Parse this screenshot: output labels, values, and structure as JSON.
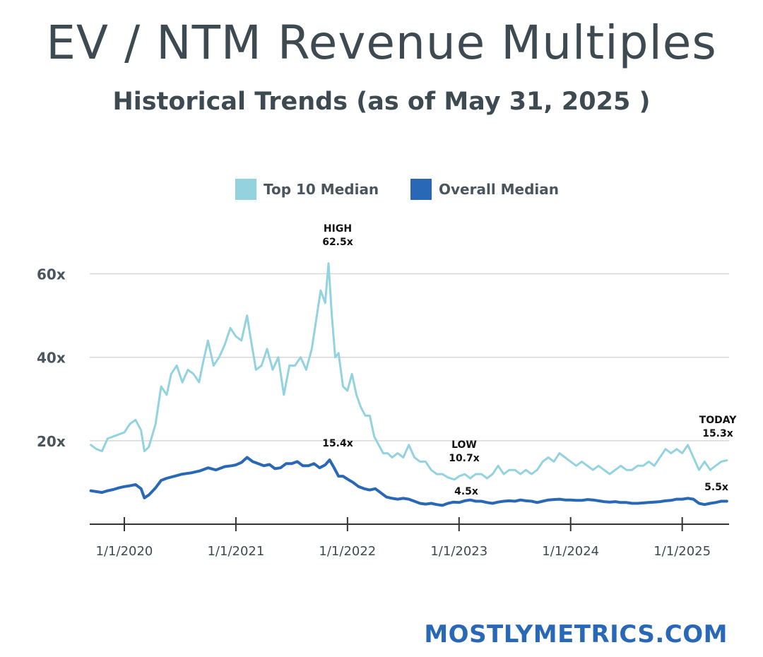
{
  "header": {
    "title": "EV / NTM Revenue Multiples",
    "subtitle": "Historical Trends (as of May 31, 2025 )"
  },
  "footer": {
    "brand": "MOSTLYMETRICS.COM"
  },
  "colors": {
    "top10": "#93d3df",
    "overall": "#2868b6",
    "text": "#3d4a52",
    "grid": "#d8d8d8",
    "brand": "#2868b6"
  },
  "chart_data": {
    "type": "line",
    "title": "",
    "xlabel": "",
    "ylabel": "",
    "ylim": [
      0,
      65
    ],
    "grid": "horizontal",
    "legend_position": "top",
    "y_ticks": [
      {
        "value": 20,
        "label": "20x"
      },
      {
        "value": 40,
        "label": "40x"
      },
      {
        "value": 60,
        "label": "60x"
      }
    ],
    "x_ticks": [
      {
        "value": 2020.0,
        "label": "1/1/2020"
      },
      {
        "value": 2021.0,
        "label": "1/1/2021"
      },
      {
        "value": 2022.0,
        "label": "1/1/2022"
      },
      {
        "value": 2023.0,
        "label": "1/1/2023"
      },
      {
        "value": 2024.0,
        "label": "1/1/2024"
      },
      {
        "value": 2025.0,
        "label": "1/1/2025"
      }
    ],
    "x_range": [
      2019.69,
      2025.42
    ],
    "series": [
      {
        "name": "Top 10 Median",
        "color": "#93d3df",
        "points": [
          [
            2019.7,
            19
          ],
          [
            2019.75,
            18
          ],
          [
            2019.8,
            17.5
          ],
          [
            2019.85,
            20.5
          ],
          [
            2019.9,
            21
          ],
          [
            2019.95,
            21.5
          ],
          [
            2020.0,
            22
          ],
          [
            2020.05,
            24
          ],
          [
            2020.1,
            25
          ],
          [
            2020.15,
            22.5
          ],
          [
            2020.18,
            17.5
          ],
          [
            2020.22,
            18.5
          ],
          [
            2020.28,
            24
          ],
          [
            2020.33,
            33
          ],
          [
            2020.38,
            31
          ],
          [
            2020.42,
            36
          ],
          [
            2020.47,
            38
          ],
          [
            2020.52,
            34
          ],
          [
            2020.57,
            37
          ],
          [
            2020.62,
            36
          ],
          [
            2020.67,
            34
          ],
          [
            2020.7,
            38
          ],
          [
            2020.75,
            44
          ],
          [
            2020.8,
            38
          ],
          [
            2020.85,
            40
          ],
          [
            2020.9,
            43
          ],
          [
            2020.95,
            47
          ],
          [
            2021.0,
            45
          ],
          [
            2021.05,
            44
          ],
          [
            2021.1,
            50
          ],
          [
            2021.13,
            45
          ],
          [
            2021.18,
            37
          ],
          [
            2021.23,
            38
          ],
          [
            2021.28,
            42
          ],
          [
            2021.33,
            37
          ],
          [
            2021.38,
            40
          ],
          [
            2021.43,
            31
          ],
          [
            2021.48,
            38
          ],
          [
            2021.53,
            38
          ],
          [
            2021.58,
            40
          ],
          [
            2021.63,
            37
          ],
          [
            2021.68,
            42
          ],
          [
            2021.72,
            49
          ],
          [
            2021.76,
            56
          ],
          [
            2021.8,
            53
          ],
          [
            2021.83,
            62.5
          ],
          [
            2021.86,
            50
          ],
          [
            2021.89,
            40
          ],
          [
            2021.92,
            41
          ],
          [
            2021.96,
            33
          ],
          [
            2022.0,
            32
          ],
          [
            2022.04,
            36
          ],
          [
            2022.08,
            31
          ],
          [
            2022.12,
            28
          ],
          [
            2022.16,
            26
          ],
          [
            2022.2,
            26
          ],
          [
            2022.24,
            21
          ],
          [
            2022.28,
            19
          ],
          [
            2022.32,
            17
          ],
          [
            2022.36,
            17
          ],
          [
            2022.4,
            16
          ],
          [
            2022.45,
            17
          ],
          [
            2022.5,
            16
          ],
          [
            2022.55,
            19
          ],
          [
            2022.6,
            16
          ],
          [
            2022.65,
            15
          ],
          [
            2022.7,
            15
          ],
          [
            2022.75,
            13
          ],
          [
            2022.8,
            12
          ],
          [
            2022.85,
            12
          ],
          [
            2022.9,
            11.2
          ],
          [
            2022.96,
            10.7
          ],
          [
            2023.0,
            11.5
          ],
          [
            2023.05,
            12
          ],
          [
            2023.1,
            11
          ],
          [
            2023.15,
            12
          ],
          [
            2023.2,
            12
          ],
          [
            2023.25,
            11
          ],
          [
            2023.3,
            12
          ],
          [
            2023.35,
            14
          ],
          [
            2023.4,
            12
          ],
          [
            2023.45,
            13
          ],
          [
            2023.5,
            13
          ],
          [
            2023.55,
            12
          ],
          [
            2023.6,
            13
          ],
          [
            2023.65,
            12
          ],
          [
            2023.7,
            13
          ],
          [
            2023.75,
            15
          ],
          [
            2023.8,
            16
          ],
          [
            2023.85,
            15
          ],
          [
            2023.9,
            17
          ],
          [
            2023.95,
            16
          ],
          [
            2024.0,
            15
          ],
          [
            2024.05,
            14
          ],
          [
            2024.1,
            15
          ],
          [
            2024.15,
            14
          ],
          [
            2024.2,
            13
          ],
          [
            2024.25,
            14
          ],
          [
            2024.3,
            13
          ],
          [
            2024.35,
            12
          ],
          [
            2024.4,
            13
          ],
          [
            2024.45,
            14
          ],
          [
            2024.5,
            13
          ],
          [
            2024.55,
            13
          ],
          [
            2024.6,
            14
          ],
          [
            2024.65,
            14
          ],
          [
            2024.7,
            15
          ],
          [
            2024.75,
            14
          ],
          [
            2024.8,
            16
          ],
          [
            2024.85,
            18
          ],
          [
            2024.9,
            17
          ],
          [
            2024.95,
            18
          ],
          [
            2025.0,
            17
          ],
          [
            2025.05,
            19
          ],
          [
            2025.1,
            16
          ],
          [
            2025.15,
            13
          ],
          [
            2025.2,
            15
          ],
          [
            2025.25,
            13
          ],
          [
            2025.3,
            14
          ],
          [
            2025.35,
            15
          ],
          [
            2025.4,
            15.3
          ]
        ]
      },
      {
        "name": "Overall Median",
        "color": "#2868b6",
        "points": [
          [
            2019.7,
            8
          ],
          [
            2019.75,
            7.8
          ],
          [
            2019.8,
            7.6
          ],
          [
            2019.85,
            8
          ],
          [
            2019.9,
            8.3
          ],
          [
            2019.95,
            8.7
          ],
          [
            2020.0,
            9
          ],
          [
            2020.05,
            9.2
          ],
          [
            2020.1,
            9.5
          ],
          [
            2020.15,
            8.5
          ],
          [
            2020.18,
            6.3
          ],
          [
            2020.22,
            7
          ],
          [
            2020.28,
            8.7
          ],
          [
            2020.33,
            10.5
          ],
          [
            2020.38,
            11
          ],
          [
            2020.45,
            11.5
          ],
          [
            2020.52,
            12
          ],
          [
            2020.6,
            12.3
          ],
          [
            2020.68,
            12.8
          ],
          [
            2020.75,
            13.5
          ],
          [
            2020.82,
            13
          ],
          [
            2020.9,
            13.8
          ],
          [
            2020.96,
            14
          ],
          [
            2021.0,
            14.2
          ],
          [
            2021.05,
            14.8
          ],
          [
            2021.1,
            16
          ],
          [
            2021.15,
            15
          ],
          [
            2021.2,
            14.5
          ],
          [
            2021.25,
            14
          ],
          [
            2021.3,
            14.3
          ],
          [
            2021.35,
            13.3
          ],
          [
            2021.4,
            13.5
          ],
          [
            2021.45,
            14.5
          ],
          [
            2021.5,
            14.5
          ],
          [
            2021.55,
            15
          ],
          [
            2021.6,
            14
          ],
          [
            2021.65,
            14
          ],
          [
            2021.7,
            14.5
          ],
          [
            2021.75,
            13.5
          ],
          [
            2021.8,
            14.2
          ],
          [
            2021.84,
            15.4
          ],
          [
            2021.88,
            13.5
          ],
          [
            2021.92,
            11.5
          ],
          [
            2021.96,
            11.5
          ],
          [
            2022.0,
            10.8
          ],
          [
            2022.05,
            10
          ],
          [
            2022.1,
            9
          ],
          [
            2022.15,
            8.5
          ],
          [
            2022.2,
            8.2
          ],
          [
            2022.25,
            8.5
          ],
          [
            2022.3,
            7.5
          ],
          [
            2022.35,
            6.5
          ],
          [
            2022.4,
            6.2
          ],
          [
            2022.45,
            6
          ],
          [
            2022.5,
            6.2
          ],
          [
            2022.55,
            6
          ],
          [
            2022.6,
            5.5
          ],
          [
            2022.65,
            5
          ],
          [
            2022.7,
            4.8
          ],
          [
            2022.75,
            5
          ],
          [
            2022.8,
            4.7
          ],
          [
            2022.85,
            4.5
          ],
          [
            2022.9,
            5
          ],
          [
            2022.95,
            5.3
          ],
          [
            2023.0,
            5.2
          ],
          [
            2023.05,
            5.6
          ],
          [
            2023.1,
            5.8
          ],
          [
            2023.15,
            5.5
          ],
          [
            2023.2,
            5.5
          ],
          [
            2023.25,
            5.2
          ],
          [
            2023.3,
            5
          ],
          [
            2023.35,
            5.3
          ],
          [
            2023.4,
            5.5
          ],
          [
            2023.45,
            5.6
          ],
          [
            2023.5,
            5.5
          ],
          [
            2023.55,
            5.8
          ],
          [
            2023.6,
            5.6
          ],
          [
            2023.65,
            5.5
          ],
          [
            2023.7,
            5.2
          ],
          [
            2023.75,
            5.5
          ],
          [
            2023.8,
            5.8
          ],
          [
            2023.85,
            5.9
          ],
          [
            2023.9,
            6
          ],
          [
            2023.95,
            5.8
          ],
          [
            2024.0,
            5.8
          ],
          [
            2024.05,
            5.7
          ],
          [
            2024.1,
            5.7
          ],
          [
            2024.15,
            5.9
          ],
          [
            2024.2,
            5.8
          ],
          [
            2024.25,
            5.6
          ],
          [
            2024.3,
            5.4
          ],
          [
            2024.35,
            5.3
          ],
          [
            2024.4,
            5.4
          ],
          [
            2024.45,
            5.2
          ],
          [
            2024.5,
            5.2
          ],
          [
            2024.55,
            5
          ],
          [
            2024.6,
            5
          ],
          [
            2024.65,
            5.1
          ],
          [
            2024.7,
            5.2
          ],
          [
            2024.75,
            5.3
          ],
          [
            2024.8,
            5.4
          ],
          [
            2024.85,
            5.6
          ],
          [
            2024.9,
            5.7
          ],
          [
            2024.95,
            6
          ],
          [
            2025.0,
            6
          ],
          [
            2025.05,
            6.2
          ],
          [
            2025.1,
            6
          ],
          [
            2025.15,
            5
          ],
          [
            2025.2,
            4.7
          ],
          [
            2025.25,
            5
          ],
          [
            2025.3,
            5.2
          ],
          [
            2025.35,
            5.5
          ],
          [
            2025.4,
            5.5
          ]
        ]
      }
    ],
    "annotations": [
      {
        "id": "high",
        "lines": [
          "HIGH",
          "62.5x"
        ]
      },
      {
        "id": "overall-high",
        "lines": [
          "15.4x"
        ]
      },
      {
        "id": "low",
        "lines": [
          "LOW",
          "10.7x"
        ]
      },
      {
        "id": "overall-low",
        "lines": [
          "4.5x"
        ]
      },
      {
        "id": "today",
        "lines": [
          "TODAY",
          "15.3x"
        ]
      },
      {
        "id": "overall-today",
        "lines": [
          "5.5x"
        ]
      }
    ]
  }
}
